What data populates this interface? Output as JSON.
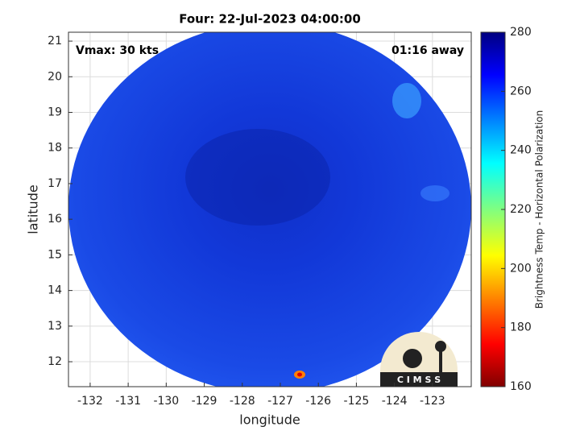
{
  "chart_data": {
    "type": "image",
    "title": "Four: 22-Jul-2023 04:00:00",
    "annotations": [
      "Vmax: 30 kts",
      "01:16 away"
    ],
    "x_label": "longitude",
    "y_label": "latitude",
    "xlim": [
      -132.57,
      -121.98
    ],
    "xticks": [
      -132,
      -131,
      -130,
      -129,
      -128,
      -127,
      -126,
      -125,
      -124,
      -123
    ],
    "ylim": [
      11.3,
      21.25
    ],
    "yticks": [
      12,
      13,
      14,
      15,
      16,
      17,
      18,
      19,
      20,
      21
    ],
    "grid": true,
    "colorbar_label": "Brightness Temp - Horizontal Polarization",
    "clim": [
      160,
      280
    ],
    "cticks": [
      160,
      180,
      200,
      220,
      240,
      260,
      280
    ]
  },
  "logo_text": "C I M S S"
}
